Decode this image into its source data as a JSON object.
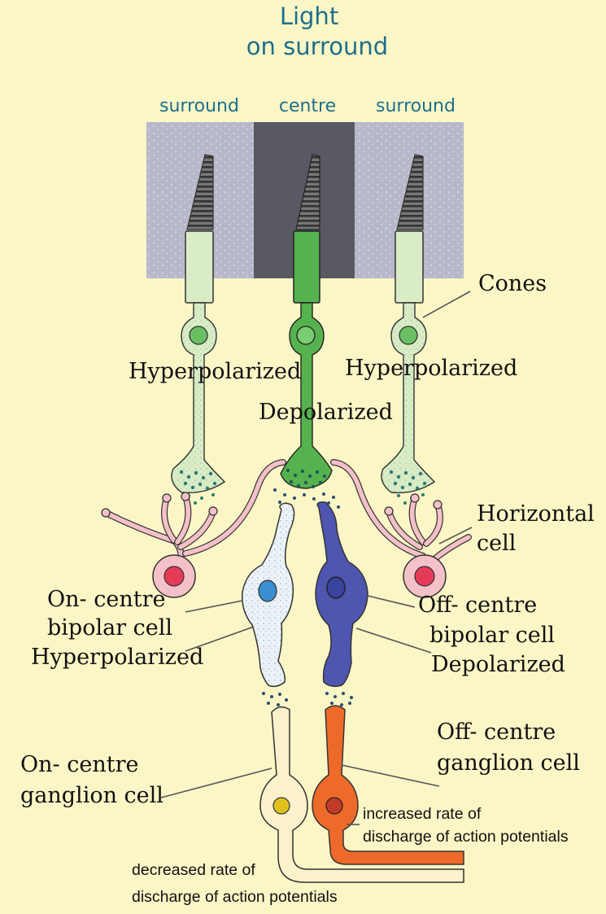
{
  "title": {
    "line1": "Light",
    "line2": "on surround"
  },
  "regions": {
    "surround_left": "surround",
    "centre": "centre",
    "surround_right": "surround"
  },
  "labels": {
    "cones": "Cones",
    "left_cone_state": "Hyperpolarized",
    "right_cone_state": "Hyperpolarized",
    "centre_cone_state": "Depolarized",
    "horizontal_line1": "Horizontal",
    "horizontal_line2": "cell",
    "on_bipolar_line1": "On- centre",
    "on_bipolar_line2": "bipolar cell",
    "on_bipolar_line3": "Hyperpolarized",
    "off_bipolar_line1": "Off- centre",
    "off_bipolar_line2": "bipolar cell",
    "off_bipolar_line3": "Depolarized",
    "on_ganglion_line1": "On- centre",
    "on_ganglion_line2": "ganglion cell",
    "off_ganglion_line1": "Off- centre",
    "off_ganglion_line2": "ganglion cell",
    "increased_line1": "increased rate of",
    "increased_line2": "discharge of action potentials",
    "decreased_line1": "decreased rate of",
    "decreased_line2": "discharge of action potentials"
  },
  "colors": {
    "background": "#fbf6c6",
    "surround_light": "#b8b8cc",
    "centre_dark": "#595963",
    "pale_cone": "#d9ecc6",
    "active_cone": "#56b24e",
    "horizontal_cell": "#f4c1c8",
    "horizontal_nucleus": "#e63b57",
    "on_bipolar": "#e7eef6",
    "off_bipolar": "#4e56b0",
    "on_ganglion": "#fbf2cc",
    "off_ganglion": "#ee6a2a",
    "title_text": "#1e6f8c"
  }
}
